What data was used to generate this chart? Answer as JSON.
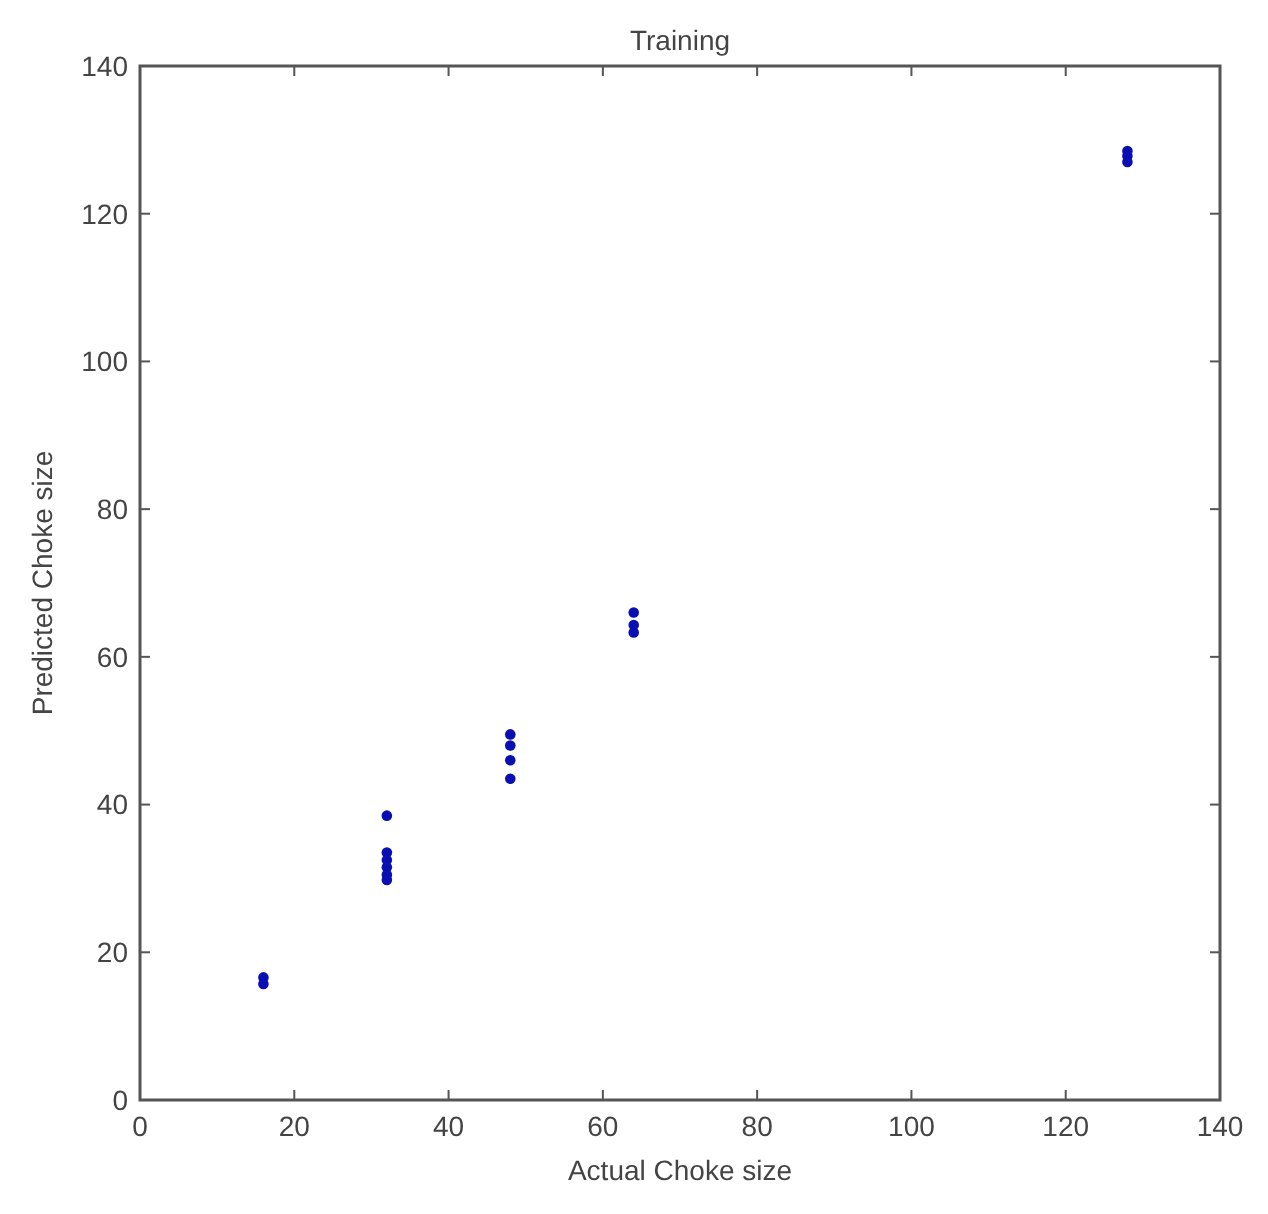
{
  "chart_data": {
    "type": "scatter",
    "title": "Training",
    "xlabel": "Actual Choke size",
    "ylabel": "Predicted Choke size",
    "x": [
      16,
      16,
      32,
      32,
      32,
      32,
      32,
      32,
      48,
      48,
      48,
      48,
      64,
      64,
      64,
      128,
      128,
      128
    ],
    "values": [
      16.6,
      15.7,
      38.5,
      33.5,
      32.5,
      31.5,
      30.5,
      29.8,
      49.5,
      48,
      46,
      43.5,
      66,
      64.3,
      63.3,
      128.5,
      127.8,
      127
    ],
    "color": "#0a0fb4",
    "marker": "circle",
    "xlim": [
      0,
      140
    ],
    "xticks": [
      0,
      20,
      40,
      60,
      80,
      100,
      120,
      140
    ],
    "ylim": [
      0,
      140
    ],
    "yticks": [
      0,
      20,
      40,
      60,
      80,
      100,
      120,
      140
    ],
    "grid": false
  }
}
